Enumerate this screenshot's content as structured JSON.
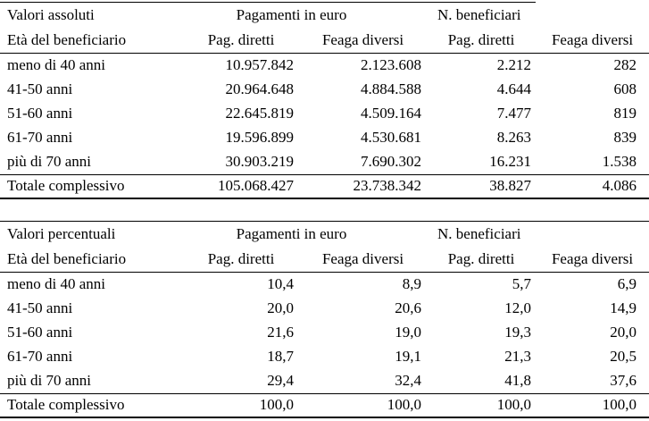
{
  "colors": {
    "text": "#000000",
    "background": "#ffffff",
    "rule": "#000000"
  },
  "tables": [
    {
      "title": "Valori assoluti",
      "row_header": "Età del beneficiario",
      "group_headers": [
        "Pagamenti in euro",
        "N. beneficiari"
      ],
      "col_headers": [
        "Pag. diretti",
        "Feaga diversi",
        "Pag. diretti",
        "Feaga diversi"
      ],
      "rows": [
        {
          "label": "meno di 40 anni",
          "values": [
            "10.957.842",
            "2.123.608",
            "2.212",
            "282"
          ]
        },
        {
          "label": "41-50 anni",
          "values": [
            "20.964.648",
            "4.884.588",
            "4.644",
            "608"
          ]
        },
        {
          "label": "51-60 anni",
          "values": [
            "22.645.819",
            "4.509.164",
            "7.477",
            "819"
          ]
        },
        {
          "label": "61-70 anni",
          "values": [
            "19.596.899",
            "4.530.681",
            "8.263",
            "839"
          ]
        },
        {
          "label": "più di 70 anni",
          "values": [
            "30.903.219",
            "7.690.302",
            "16.231",
            "1.538"
          ]
        }
      ],
      "total": {
        "label": "Totale complessivo",
        "values": [
          "105.068.427",
          "23.738.342",
          "38.827",
          "4.086"
        ]
      }
    },
    {
      "title": "Valori percentuali",
      "row_header": "Età del beneficiario",
      "group_headers": [
        "Pagamenti in euro",
        "N. beneficiari"
      ],
      "col_headers": [
        "Pag. diretti",
        "Feaga diversi",
        "Pag. diretti",
        "Feaga diversi"
      ],
      "rows": [
        {
          "label": "meno di 40 anni",
          "values": [
            "10,4",
            "8,9",
            "5,7",
            "6,9"
          ]
        },
        {
          "label": "41-50 anni",
          "values": [
            "20,0",
            "20,6",
            "12,0",
            "14,9"
          ]
        },
        {
          "label": "51-60 anni",
          "values": [
            "21,6",
            "19,0",
            "19,3",
            "20,0"
          ]
        },
        {
          "label": "61-70 anni",
          "values": [
            "18,7",
            "19,1",
            "21,3",
            "20,5"
          ]
        },
        {
          "label": "più di 70 anni",
          "values": [
            "29,4",
            "32,4",
            "41,8",
            "37,6"
          ]
        }
      ],
      "total": {
        "label": "Totale complessivo",
        "values": [
          "100,0",
          "100,0",
          "100,0",
          "100,0"
        ]
      }
    }
  ]
}
